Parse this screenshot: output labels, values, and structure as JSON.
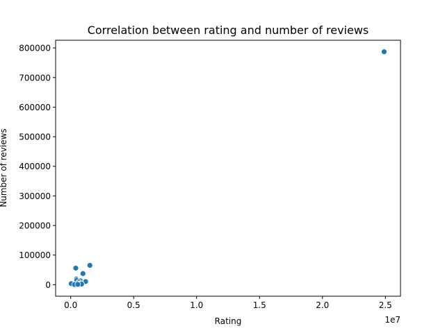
{
  "chart_data": {
    "type": "scatter",
    "title": "Correlation between rating and number of reviews",
    "xlabel": "Rating",
    "ylabel": "Number of reviews",
    "x_offset_label": "1e7",
    "xlim": [
      -1200000,
      26200000
    ],
    "ylim": [
      -39000,
      826000
    ],
    "x_ticks": [
      {
        "value": 0,
        "label": "0.0"
      },
      {
        "value": 5000000,
        "label": "0.5"
      },
      {
        "value": 10000000,
        "label": "1.0"
      },
      {
        "value": 15000000,
        "label": "1.5"
      },
      {
        "value": 20000000,
        "label": "2.0"
      },
      {
        "value": 25000000,
        "label": "2.5"
      }
    ],
    "y_ticks": [
      {
        "value": 0,
        "label": "0"
      },
      {
        "value": 100000,
        "label": "100000"
      },
      {
        "value": 200000,
        "label": "200000"
      },
      {
        "value": 300000,
        "label": "300000"
      },
      {
        "value": 400000,
        "label": "400000"
      },
      {
        "value": 500000,
        "label": "500000"
      },
      {
        "value": 600000,
        "label": "600000"
      },
      {
        "value": 700000,
        "label": "700000"
      },
      {
        "value": 800000,
        "label": "800000"
      }
    ],
    "grid": false,
    "point_color": "#1f77b4",
    "points": [
      {
        "x": 24900000,
        "y": 787000
      },
      {
        "x": 1520000,
        "y": 65500
      },
      {
        "x": 400000,
        "y": 56000
      },
      {
        "x": 970000,
        "y": 37500
      },
      {
        "x": 1180000,
        "y": 10500
      },
      {
        "x": 450000,
        "y": 19000
      },
      {
        "x": 480000,
        "y": 15000
      },
      {
        "x": 760000,
        "y": 13000
      },
      {
        "x": 640000,
        "y": 9000
      },
      {
        "x": 820000,
        "y": 5500
      },
      {
        "x": 520000,
        "y": 4000
      },
      {
        "x": 720000,
        "y": 2500
      },
      {
        "x": 60000,
        "y": 1500
      },
      {
        "x": 40000,
        "y": 3500
      },
      {
        "x": 300000,
        "y": 500
      },
      {
        "x": 860000,
        "y": 2000
      },
      {
        "x": 560000,
        "y": 1000
      }
    ]
  }
}
